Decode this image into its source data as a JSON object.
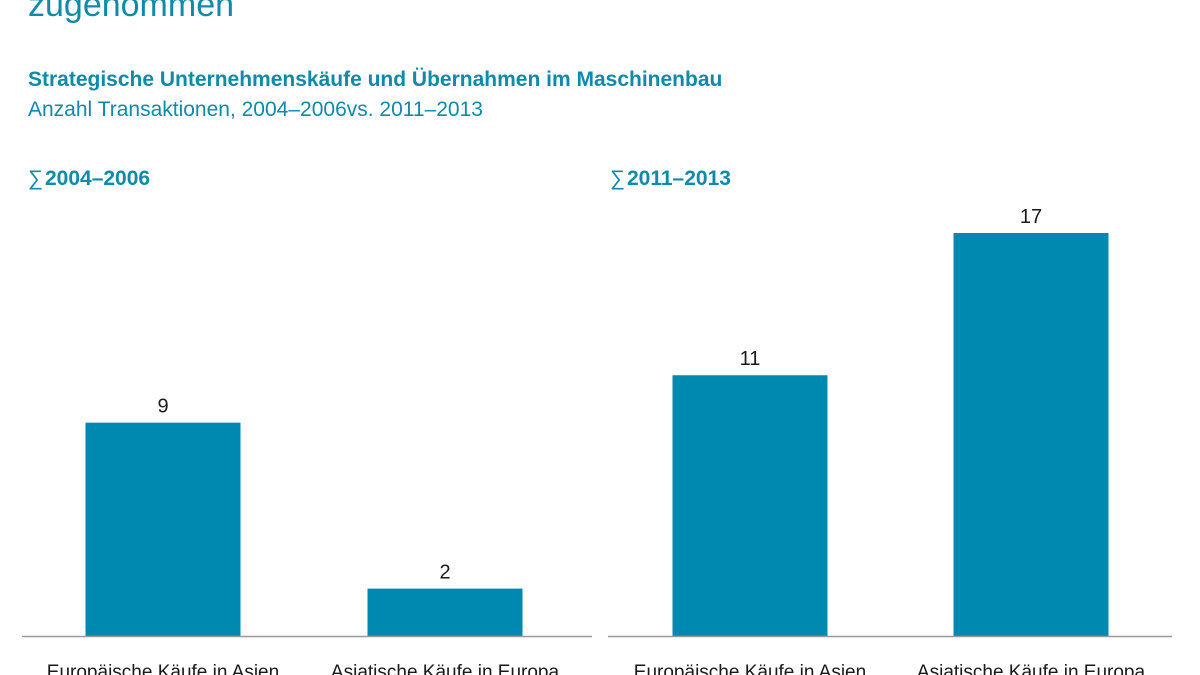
{
  "headline": "zugenommen",
  "title": "Strategische Unternehmenskäufe und Übernahmen im Maschinenbau",
  "subtitle": "Anzahl Transaktionen, 2004–2006vs. 2011–2013",
  "colors": {
    "bar": "#0089b0",
    "accent_text": "#0f8aa8",
    "baseline": "#999999",
    "label": "#1a1a1a"
  },
  "chart_data": [
    {
      "type": "bar",
      "title": "2004–2006",
      "title_symbol": "∑",
      "categories": [
        "Europäische Käufe in Asien",
        "Asiatische Käufe in Europa"
      ],
      "values": [
        9,
        2
      ],
      "xlabel": "",
      "ylabel": "",
      "ylim": [
        0,
        17
      ],
      "grid": false
    },
    {
      "type": "bar",
      "title": "2011–2013",
      "title_symbol": "∑",
      "categories": [
        "Europäische Käufe in Asien",
        "Asiatische Käufe in Europa"
      ],
      "values": [
        11,
        17
      ],
      "xlabel": "",
      "ylabel": "",
      "ylim": [
        0,
        17
      ],
      "grid": false
    }
  ]
}
